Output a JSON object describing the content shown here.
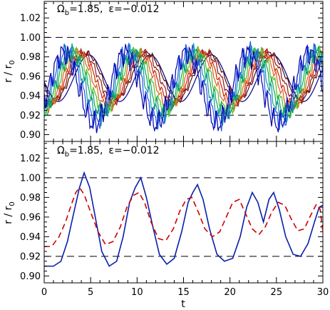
{
  "chart_data": [
    {
      "type": "line",
      "annotation": {
        "omega_symbol": "Ω",
        "omega_sub": "b",
        "omega_value": "=1.85,",
        "eps_symbol": "ε",
        "eps_value": "=−0.012"
      },
      "ylabel": {
        "main": "r / r",
        "sub": "0"
      },
      "xlim": [
        0,
        30
      ],
      "ylim": [
        0.893,
        1.037
      ],
      "yticks": [
        "0.90",
        "0.92",
        "0.94",
        "0.96",
        "0.98",
        "1.00",
        "1.02"
      ],
      "reference_lines": [
        1.0,
        0.92
      ],
      "series": [
        {
          "color": "#00008b",
          "base": 0.934,
          "amp": 0.048,
          "phase_shift": 0.6,
          "noise": 0.0
        },
        {
          "color": "#5a0a0a",
          "base": 0.937,
          "amp": 0.047,
          "phase_shift": 0.3,
          "noise": 0.002
        },
        {
          "color": "#8b1a1a",
          "base": 0.934,
          "amp": 0.05,
          "phase_shift": 0.0,
          "noise": 0.003
        },
        {
          "color": "#cc2200",
          "base": 0.931,
          "amp": 0.053,
          "phase_shift": -0.3,
          "noise": 0.003
        },
        {
          "color": "#e06020",
          "base": 0.928,
          "amp": 0.056,
          "phase_shift": -0.6,
          "noise": 0.004
        },
        {
          "color": "#55bb22",
          "base": 0.925,
          "amp": 0.059,
          "phase_shift": -0.9,
          "noise": 0.005
        },
        {
          "color": "#00aa55",
          "base": 0.922,
          "amp": 0.062,
          "phase_shift": -1.2,
          "noise": 0.006
        },
        {
          "color": "#119999",
          "base": 0.919,
          "amp": 0.065,
          "phase_shift": -1.5,
          "noise": 0.007
        },
        {
          "color": "#2255ee",
          "base": 0.915,
          "amp": 0.069,
          "phase_shift": -1.8,
          "noise": 0.008
        },
        {
          "color": "#0000aa",
          "base": 0.911,
          "amp": 0.073,
          "phase_shift": -2.1,
          "noise": 0.009
        }
      ]
    },
    {
      "type": "line",
      "annotation": {
        "omega_symbol": "Ω",
        "omega_sub": "b",
        "omega_value": "=1.85,",
        "eps_symbol": "ε",
        "eps_value": "=−0.012"
      },
      "ylabel": {
        "main": "r / r",
        "sub": "0"
      },
      "xlabel": "t",
      "xlim": [
        0,
        30
      ],
      "ylim": [
        0.893,
        1.037
      ],
      "xticks": [
        "0",
        "5",
        "10",
        "15",
        "20",
        "25",
        "30"
      ],
      "yticks": [
        "0.90",
        "0.92",
        "0.94",
        "0.96",
        "0.98",
        "1.00",
        "1.02"
      ],
      "reference_lines": [
        1.0,
        0.92
      ],
      "series": [
        {
          "color": "#0a1eaa",
          "style": "solid",
          "points": [
            [
              0,
              0.91
            ],
            [
              1.0,
              0.91
            ],
            [
              1.8,
              0.915
            ],
            [
              2.5,
              0.935
            ],
            [
              3.2,
              0.965
            ],
            [
              3.8,
              0.99
            ],
            [
              4.3,
              1.005
            ],
            [
              4.9,
              0.99
            ],
            [
              5.5,
              0.96
            ],
            [
              6.2,
              0.925
            ],
            [
              7.0,
              0.91
            ],
            [
              7.8,
              0.915
            ],
            [
              8.5,
              0.94
            ],
            [
              9.2,
              0.975
            ],
            [
              9.8,
              0.99
            ],
            [
              10.4,
              1.0
            ],
            [
              11.0,
              0.98
            ],
            [
              11.7,
              0.95
            ],
            [
              12.4,
              0.922
            ],
            [
              13.2,
              0.912
            ],
            [
              14.0,
              0.918
            ],
            [
              14.8,
              0.945
            ],
            [
              15.5,
              0.975
            ],
            [
              16.0,
              0.985
            ],
            [
              16.5,
              0.993
            ],
            [
              17.1,
              0.978
            ],
            [
              17.8,
              0.948
            ],
            [
              18.6,
              0.922
            ],
            [
              19.4,
              0.915
            ],
            [
              20.3,
              0.918
            ],
            [
              21.1,
              0.94
            ],
            [
              21.8,
              0.97
            ],
            [
              22.4,
              0.985
            ],
            [
              23.0,
              0.975
            ],
            [
              23.6,
              0.955
            ],
            [
              24.2,
              0.978
            ],
            [
              24.7,
              0.985
            ],
            [
              25.3,
              0.968
            ],
            [
              26.0,
              0.94
            ],
            [
              26.8,
              0.922
            ],
            [
              27.6,
              0.92
            ],
            [
              28.4,
              0.933
            ],
            [
              29.1,
              0.955
            ],
            [
              29.6,
              0.97
            ],
            [
              30.0,
              0.972
            ]
          ]
        },
        {
          "color": "#cc0000",
          "style": "dashed",
          "points": [
            [
              0,
              0.93
            ],
            [
              0.8,
              0.93
            ],
            [
              1.6,
              0.94
            ],
            [
              2.3,
              0.955
            ],
            [
              2.9,
              0.972
            ],
            [
              3.4,
              0.985
            ],
            [
              3.8,
              0.99
            ],
            [
              4.3,
              0.983
            ],
            [
              5.0,
              0.965
            ],
            [
              5.8,
              0.945
            ],
            [
              6.6,
              0.932
            ],
            [
              7.4,
              0.935
            ],
            [
              8.2,
              0.95
            ],
            [
              8.9,
              0.97
            ],
            [
              9.6,
              0.982
            ],
            [
              10.2,
              0.985
            ],
            [
              10.8,
              0.975
            ],
            [
              11.5,
              0.955
            ],
            [
              12.3,
              0.938
            ],
            [
              13.1,
              0.936
            ],
            [
              13.9,
              0.948
            ],
            [
              14.6,
              0.966
            ],
            [
              15.3,
              0.978
            ],
            [
              15.9,
              0.98
            ],
            [
              16.6,
              0.965
            ],
            [
              17.3,
              0.948
            ],
            [
              18.1,
              0.94
            ],
            [
              18.9,
              0.945
            ],
            [
              19.6,
              0.96
            ],
            [
              20.3,
              0.975
            ],
            [
              21.0,
              0.978
            ],
            [
              21.7,
              0.963
            ],
            [
              22.4,
              0.948
            ],
            [
              23.1,
              0.942
            ],
            [
              23.8,
              0.95
            ],
            [
              24.5,
              0.965
            ],
            [
              25.2,
              0.975
            ],
            [
              25.9,
              0.972
            ],
            [
              26.6,
              0.958
            ],
            [
              27.3,
              0.946
            ],
            [
              28.0,
              0.948
            ],
            [
              28.7,
              0.962
            ],
            [
              29.3,
              0.973
            ],
            [
              29.7,
              0.968
            ],
            [
              30.0,
              0.945
            ]
          ]
        }
      ]
    }
  ]
}
